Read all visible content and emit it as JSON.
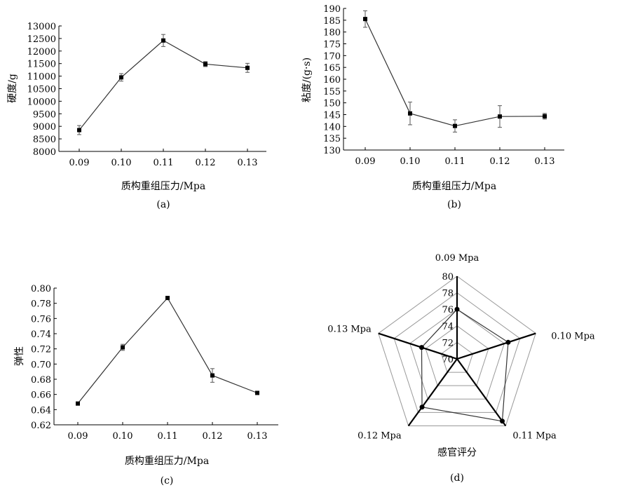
{
  "chart_data": [
    {
      "id": "a",
      "type": "line",
      "caption": "(a)",
      "xlabel": "质构重组压力/Mpa",
      "ylabel": "硬度/g",
      "categories": [
        "0.09",
        "0.10",
        "0.11",
        "0.12",
        "0.13"
      ],
      "x": [
        0.09,
        0.1,
        0.11,
        0.12,
        0.13
      ],
      "values": [
        8850,
        10950,
        12420,
        11480,
        11330
      ],
      "errors": [
        180,
        150,
        240,
        100,
        180
      ],
      "ylim": [
        8000,
        13000
      ],
      "yticks": [
        "8000",
        "8500",
        "9000",
        "9500",
        "10000",
        "10500",
        "11000",
        "11500",
        "12000",
        "12500",
        "13000"
      ],
      "grid": false
    },
    {
      "id": "b",
      "type": "line",
      "caption": "(b)",
      "xlabel": "质构重组压力/Mpa",
      "ylabel": "粘度/(g·s)",
      "categories": [
        "0.09",
        "0.10",
        "0.11",
        "0.12",
        "0.13"
      ],
      "x": [
        0.09,
        0.1,
        0.11,
        0.12,
        0.13
      ],
      "values": [
        185.5,
        145.5,
        140.2,
        144.2,
        144.3
      ],
      "errors": [
        3.5,
        4.8,
        2.6,
        4.6,
        1.2
      ],
      "ylim": [
        130,
        190
      ],
      "yticks": [
        "130",
        "135",
        "140",
        "145",
        "150",
        "155",
        "160",
        "165",
        "170",
        "175",
        "180",
        "185",
        "190"
      ],
      "grid": false
    },
    {
      "id": "c",
      "type": "line",
      "caption": "(c)",
      "xlabel": "质构重组压力/Mpa",
      "ylabel": "弹性",
      "categories": [
        "0.09",
        "0.10",
        "0.11",
        "0.12",
        "0.13"
      ],
      "x": [
        0.09,
        0.1,
        0.11,
        0.12,
        0.13
      ],
      "values": [
        0.648,
        0.722,
        0.787,
        0.685,
        0.662
      ],
      "errors": [
        0.001,
        0.004,
        0.001,
        0.009,
        0.001
      ],
      "ylim": [
        0.62,
        0.8
      ],
      "yticks": [
        "0.62",
        "0.64",
        "0.66",
        "0.68",
        "0.70",
        "0.72",
        "0.74",
        "0.76",
        "0.78",
        "0.80"
      ],
      "grid": false
    },
    {
      "id": "d",
      "type": "radar",
      "caption": "(d)",
      "title": "感官评分",
      "axes": [
        "0.09 Mpa",
        "0.10 Mpa",
        "0.11 Mpa",
        "0.12 Mpa",
        "0.13 Mpa"
      ],
      "values": [
        76,
        76.5,
        79.3,
        77.2,
        74.5
      ],
      "rlim": [
        70,
        80
      ],
      "rticks": [
        "70",
        "72",
        "74",
        "76",
        "78",
        "80"
      ]
    }
  ]
}
